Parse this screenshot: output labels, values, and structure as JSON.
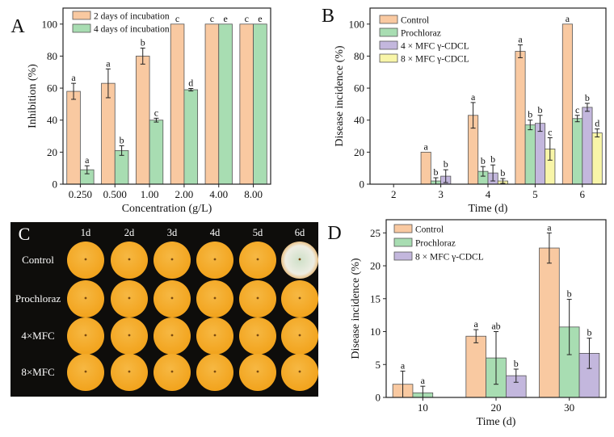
{
  "colors": {
    "orange": "#F9C9A1",
    "green": "#A8DDB2",
    "purple": "#C3B7DD",
    "yellow": "#F8F5A8",
    "axis": "#222222",
    "fruit": "#F2A31C",
    "fruit_light": "#F6B843",
    "mold": "#EDEDE3",
    "photo_bg": "#0E0D0B"
  },
  "chart_data": [
    {
      "panel": "A",
      "type": "bar",
      "xlabel": "Concentration (g/L)",
      "ylabel": "Inhibition (%)",
      "ylim": [
        0,
        110
      ],
      "yticks": [
        0,
        20,
        40,
        60,
        80,
        100
      ],
      "legend_position": "top-left",
      "categories": [
        "0.250",
        "0.500",
        "1.00",
        "2.00",
        "4.00",
        "8.00"
      ],
      "series": [
        {
          "name": "2 days of incubation",
          "color": "#F9C9A1",
          "values": [
            58,
            63,
            80,
            100,
            100,
            100
          ],
          "errors": [
            5,
            9,
            5,
            0,
            0,
            0
          ],
          "labels": [
            "a",
            "a",
            "b",
            "c",
            "c",
            "c"
          ]
        },
        {
          "name": "4 days of incubation",
          "color": "#A8DDB2",
          "values": [
            9,
            21,
            40,
            59,
            100,
            100
          ],
          "errors": [
            2.5,
            3,
            1.2,
            0.8,
            0,
            0
          ],
          "labels": [
            "a",
            "b",
            "c",
            "d",
            "e",
            "e"
          ]
        }
      ]
    },
    {
      "panel": "B",
      "type": "bar",
      "xlabel": "Time (d)",
      "ylabel": "Disease incidence (%)",
      "ylim": [
        0,
        110
      ],
      "yticks": [
        0,
        20,
        40,
        60,
        80,
        100
      ],
      "legend_position": "top-left",
      "categories": [
        "2",
        "3",
        "4",
        "5",
        "6"
      ],
      "series": [
        {
          "name": "Control",
          "color": "#F9C9A1",
          "values": [
            0,
            20,
            43,
            83,
            100
          ],
          "errors": [
            0,
            0,
            8,
            4,
            0
          ],
          "labels": [
            "",
            "a",
            "a",
            "a",
            "a"
          ]
        },
        {
          "name": "Prochloraz",
          "color": "#A8DDB2",
          "values": [
            0,
            2,
            8,
            37,
            41
          ],
          "errors": [
            0,
            2,
            3,
            3,
            2
          ],
          "labels": [
            "",
            "b",
            "b",
            "b",
            "c"
          ]
        },
        {
          "name": "4 × MFC γ-CDCL",
          "color": "#C3B7DD",
          "values": [
            0,
            5,
            7,
            38,
            48
          ],
          "errors": [
            0,
            4,
            5,
            5,
            2.5
          ],
          "labels": [
            "",
            "b",
            "b",
            "b",
            "b"
          ]
        },
        {
          "name": "8 × MFC γ-CDCL",
          "color": "#F8F5A8",
          "values": [
            0,
            0,
            2,
            22,
            32
          ],
          "errors": [
            0,
            0,
            1.5,
            7,
            2.5
          ],
          "labels": [
            "",
            "",
            "b",
            "c",
            "d"
          ]
        }
      ]
    },
    {
      "panel": "D",
      "type": "bar",
      "xlabel": "Time (d)",
      "ylabel": "Disease incidence (%)",
      "ylim": [
        0,
        27
      ],
      "yticks": [
        0,
        5,
        10,
        15,
        20,
        25
      ],
      "legend_position": "top-left",
      "categories": [
        "10",
        "20",
        "30"
      ],
      "series": [
        {
          "name": "Control",
          "color": "#F9C9A1",
          "values": [
            2,
            9.3,
            22.7
          ],
          "errors": [
            2,
            1,
            2.3
          ],
          "labels": [
            "a",
            "a",
            "a"
          ]
        },
        {
          "name": "Prochloraz",
          "color": "#A8DDB2",
          "values": [
            0.7,
            6,
            10.7
          ],
          "errors": [
            1,
            4,
            4.2
          ],
          "labels": [
            "a",
            "ab",
            "b"
          ]
        },
        {
          "name": "8 × MFC γ-CDCL",
          "color": "#C3B7DD",
          "values": [
            0,
            3.3,
            6.7
          ],
          "errors": [
            0,
            1,
            2.3
          ],
          "labels": [
            "",
            "b",
            "b"
          ]
        }
      ]
    }
  ],
  "photo_panel": {
    "panel": "C",
    "columns": [
      "1d",
      "2d",
      "3d",
      "4d",
      "5d",
      "6d"
    ],
    "rows": [
      "Control",
      "Prochloraz",
      "4×MFC",
      "8×MFC"
    ],
    "moldy_cells": [
      [
        0,
        5
      ]
    ]
  }
}
